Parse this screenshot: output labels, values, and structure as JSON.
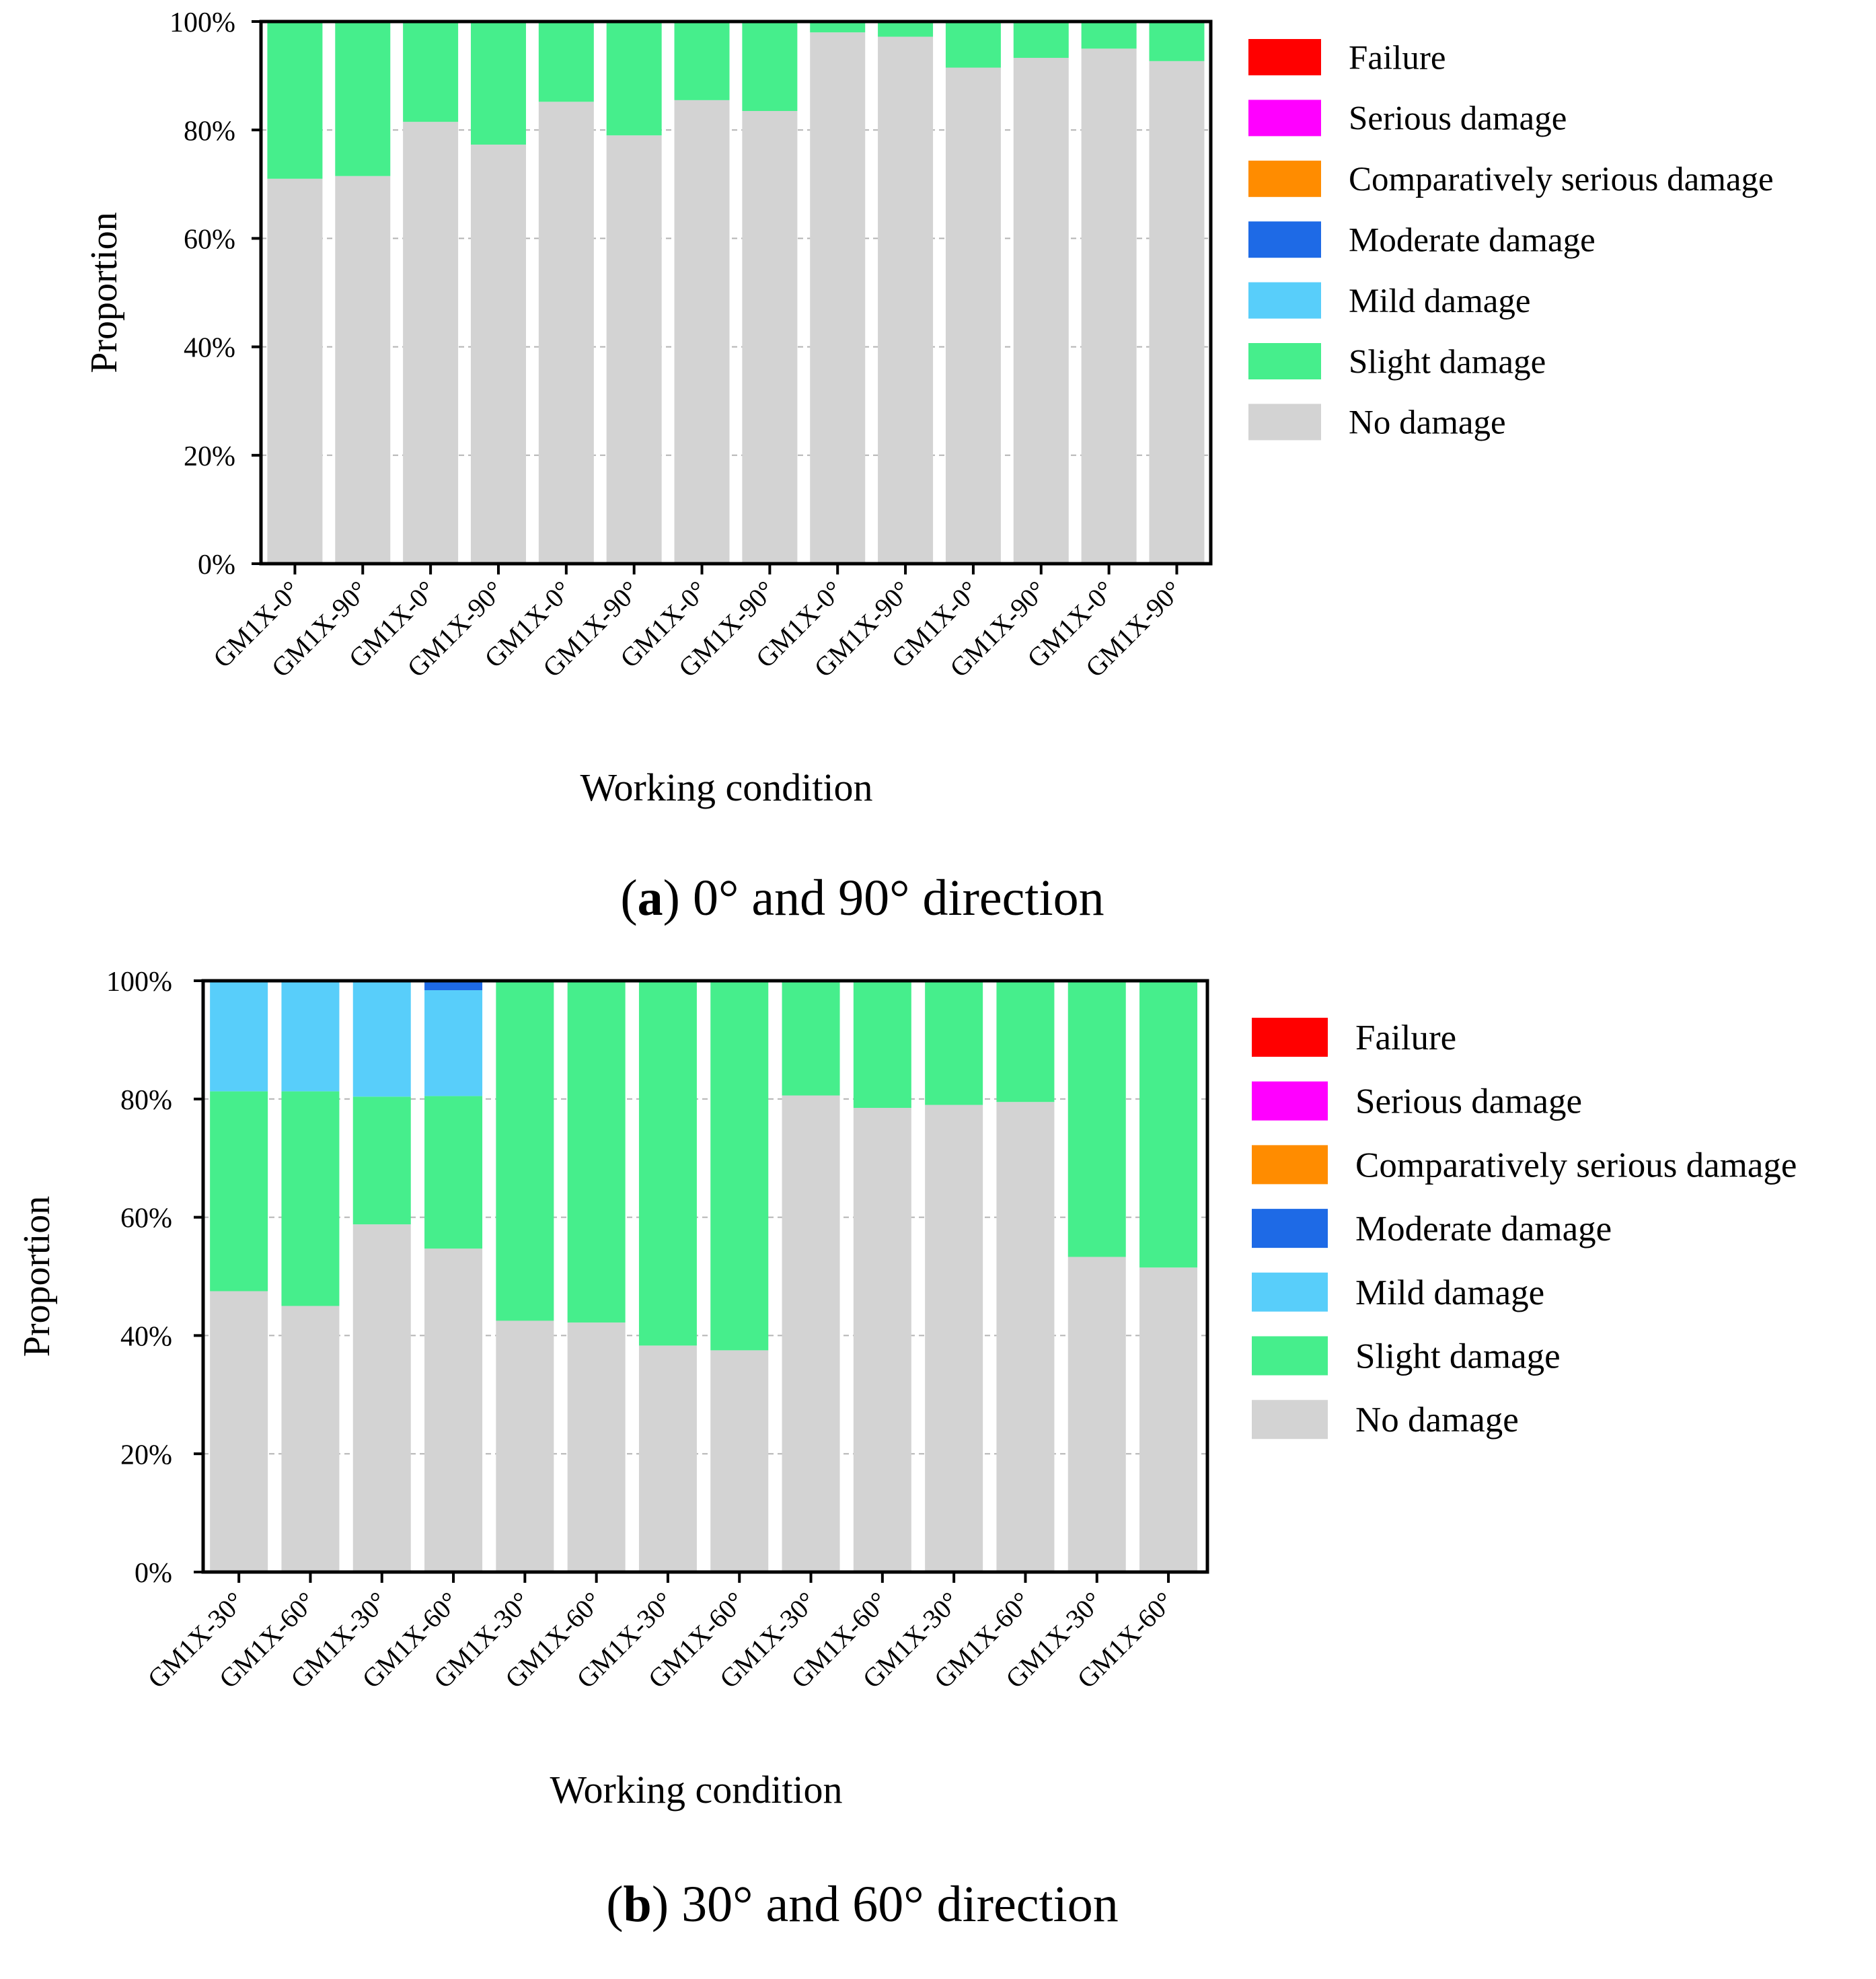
{
  "colors": {
    "failure": "#ff0000",
    "serious": "#ff00ff",
    "comparatively_serious": "#ff8c00",
    "moderate": "#1e6ae6",
    "mild": "#58cefa",
    "slight": "#46ee8c",
    "none": "#d3d3d3",
    "grid": "#b4b4b4"
  },
  "chart_data": [
    {
      "type": "bar",
      "stacked": true,
      "caption_letter": "a",
      "caption_rest": " 0° and 90° direction",
      "xlabel": "Working condition",
      "ylabel": "Proportion",
      "ylim": [
        0,
        100
      ],
      "yticks": [
        "0%",
        "20%",
        "40%",
        "60%",
        "80%",
        "100%"
      ],
      "grid": true,
      "legend_position": "right",
      "categories": [
        "GM1X-0°",
        "GM1X-90°",
        "GM1X-0°",
        "GM1X-90°",
        "GM1X-0°",
        "GM1X-90°",
        "GM1X-0°",
        "GM1X-90°",
        "GM1X-0°",
        "GM1X-90°",
        "GM1X-0°",
        "GM1X-90°",
        "GM1X-0°",
        "GM1X-90°"
      ],
      "series": [
        {
          "name": "No damage",
          "key": "none",
          "values": [
            71,
            71.5,
            81.5,
            77.3,
            85.2,
            79,
            85.5,
            83.5,
            98,
            97.2,
            91.5,
            93.3,
            95,
            92.7
          ]
        },
        {
          "name": "Slight damage",
          "key": "slight",
          "values": [
            29,
            28.5,
            18.5,
            22.7,
            14.8,
            21,
            14.5,
            16.5,
            2,
            2.8,
            8.5,
            6.7,
            5,
            7.3
          ]
        },
        {
          "name": "Mild damage",
          "key": "mild",
          "values": [
            0,
            0,
            0,
            0,
            0,
            0,
            0,
            0,
            0,
            0,
            0,
            0,
            0,
            0
          ]
        },
        {
          "name": "Moderate damage",
          "key": "moderate",
          "values": [
            0,
            0,
            0,
            0,
            0,
            0,
            0,
            0,
            0,
            0,
            0,
            0,
            0,
            0
          ]
        },
        {
          "name": "Comparatively serious damage",
          "key": "comparatively_serious",
          "values": [
            0,
            0,
            0,
            0,
            0,
            0,
            0,
            0,
            0,
            0,
            0,
            0,
            0,
            0
          ]
        },
        {
          "name": "Serious damage",
          "key": "serious",
          "values": [
            0,
            0,
            0,
            0,
            0,
            0,
            0,
            0,
            0,
            0,
            0,
            0,
            0,
            0
          ]
        },
        {
          "name": "Failure",
          "key": "failure",
          "values": [
            0,
            0,
            0,
            0,
            0,
            0,
            0,
            0,
            0,
            0,
            0,
            0,
            0,
            0
          ]
        }
      ],
      "legend": [
        "Failure",
        "Serious damage",
        "Comparatively serious damage",
        "Moderate damage",
        "Mild damage",
        "Slight damage",
        "No damage"
      ]
    },
    {
      "type": "bar",
      "stacked": true,
      "caption_letter": "b",
      "caption_rest": " 30° and 60° direction",
      "xlabel": "Working condition",
      "ylabel": "Proportion",
      "ylim": [
        0,
        100
      ],
      "yticks": [
        "0%",
        "20%",
        "40%",
        "60%",
        "80%",
        "100%"
      ],
      "grid": true,
      "legend_position": "right",
      "categories": [
        "GM1X-30°",
        "GM1X-60°",
        "GM1X-30°",
        "GM1X-60°",
        "GM1X-30°",
        "GM1X-60°",
        "GM1X-30°",
        "GM1X-60°",
        "GM1X-30°",
        "GM1X-60°",
        "GM1X-30°",
        "GM1X-60°",
        "GM1X-30°",
        "GM1X-60°"
      ],
      "series": [
        {
          "name": "No damage",
          "key": "none",
          "values": [
            47.5,
            45,
            58.8,
            54.7,
            42.5,
            42.2,
            38.3,
            37.5,
            80.6,
            78.5,
            79,
            79.5,
            53.3,
            51.5
          ]
        },
        {
          "name": "Slight damage",
          "key": "slight",
          "values": [
            33.8,
            36.3,
            21.6,
            25.8,
            57.5,
            57.8,
            61.7,
            62.5,
            19.4,
            21.5,
            21,
            20.5,
            46.7,
            48.5
          ]
        },
        {
          "name": "Mild damage",
          "key": "mild",
          "values": [
            18.7,
            18.7,
            19.6,
            17.9,
            0,
            0,
            0,
            0,
            0,
            0,
            0,
            0,
            0,
            0
          ]
        },
        {
          "name": "Moderate damage",
          "key": "moderate",
          "values": [
            0,
            0,
            0,
            1.6,
            0,
            0,
            0,
            0,
            0,
            0,
            0,
            0,
            0,
            0
          ]
        },
        {
          "name": "Comparatively serious damage",
          "key": "comparatively_serious",
          "values": [
            0,
            0,
            0,
            0,
            0,
            0,
            0,
            0,
            0,
            0,
            0,
            0,
            0,
            0
          ]
        },
        {
          "name": "Serious damage",
          "key": "serious",
          "values": [
            0,
            0,
            0,
            0,
            0,
            0,
            0,
            0,
            0,
            0,
            0,
            0,
            0,
            0
          ]
        },
        {
          "name": "Failure",
          "key": "failure",
          "values": [
            0,
            0,
            0,
            0,
            0,
            0,
            0,
            0,
            0,
            0,
            0,
            0,
            0,
            0
          ]
        }
      ],
      "legend": [
        "Failure",
        "Serious damage",
        "Comparatively serious damage",
        "Moderate damage",
        "Mild damage",
        "Slight damage",
        "No damage"
      ]
    }
  ]
}
